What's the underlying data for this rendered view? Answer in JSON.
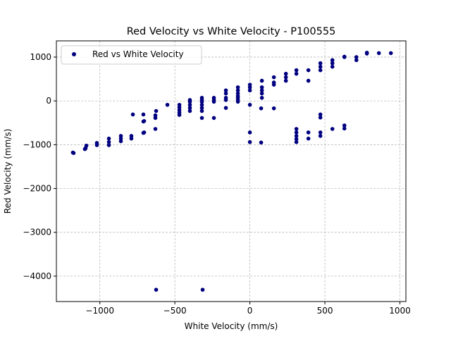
{
  "chart_data": {
    "type": "scatter",
    "title": "Red Velocity vs White Velocity - P100555",
    "xlabel": "White Velocity (mm/s)",
    "ylabel": "Red Velocity (mm/s)",
    "xlim": [
      -1290,
      1040
    ],
    "ylim": [
      -4580,
      1370
    ],
    "xticks": [
      -1000,
      -500,
      0,
      500,
      1000
    ],
    "yticks": [
      1000,
      0,
      -1000,
      -2000,
      -3000,
      -4000
    ],
    "xtick_labels": [
      "−1000",
      "−500",
      "0",
      "500",
      "1000"
    ],
    "ytick_labels": [
      "1000",
      "0",
      "−1000",
      "−2000",
      "−3000",
      "−4000"
    ],
    "grid": true,
    "legend_position": "top-left",
    "series": [
      {
        "name": "Red vs White Velocity",
        "color": "#000080",
        "points": [
          [
            -1180,
            -1180
          ],
          [
            -1175,
            -1190
          ],
          [
            -1100,
            -1100
          ],
          [
            -1095,
            -1080
          ],
          [
            -1090,
            -1020
          ],
          [
            -1020,
            -1010
          ],
          [
            -1020,
            -960
          ],
          [
            -940,
            -1010
          ],
          [
            -940,
            -940
          ],
          [
            -940,
            -860
          ],
          [
            -860,
            -920
          ],
          [
            -860,
            -860
          ],
          [
            -860,
            -800
          ],
          [
            -790,
            -860
          ],
          [
            -790,
            -800
          ],
          [
            -780,
            -310
          ],
          [
            -710,
            -730
          ],
          [
            -705,
            -720
          ],
          [
            -710,
            -470
          ],
          [
            -705,
            -460
          ],
          [
            -710,
            -310
          ],
          [
            -630,
            -640
          ],
          [
            -630,
            -390
          ],
          [
            -630,
            -330
          ],
          [
            -625,
            -230
          ],
          [
            -625,
            -4310
          ],
          [
            -550,
            -90
          ],
          [
            -470,
            -320
          ],
          [
            -470,
            -270
          ],
          [
            -470,
            -210
          ],
          [
            -470,
            -150
          ],
          [
            -470,
            -90
          ],
          [
            -400,
            -230
          ],
          [
            -400,
            -160
          ],
          [
            -400,
            -90
          ],
          [
            -400,
            -20
          ],
          [
            -400,
            20
          ],
          [
            -320,
            -390
          ],
          [
            -320,
            -230
          ],
          [
            -320,
            -160
          ],
          [
            -320,
            -90
          ],
          [
            -320,
            -20
          ],
          [
            -320,
            20
          ],
          [
            -320,
            70
          ],
          [
            -315,
            -4310
          ],
          [
            -240,
            -390
          ],
          [
            -240,
            -20
          ],
          [
            -240,
            20
          ],
          [
            -240,
            70
          ],
          [
            -160,
            -160
          ],
          [
            -160,
            20
          ],
          [
            -160,
            70
          ],
          [
            -160,
            170
          ],
          [
            -160,
            240
          ],
          [
            -80,
            -20
          ],
          [
            -80,
            20
          ],
          [
            -80,
            70
          ],
          [
            -80,
            110
          ],
          [
            -80,
            170
          ],
          [
            -80,
            240
          ],
          [
            -80,
            310
          ],
          [
            0,
            -90
          ],
          [
            0,
            -720
          ],
          [
            0,
            -940
          ],
          [
            0,
            240
          ],
          [
            0,
            310
          ],
          [
            0,
            370
          ],
          [
            75,
            -170
          ],
          [
            75,
            -950
          ],
          [
            80,
            70
          ],
          [
            80,
            170
          ],
          [
            80,
            240
          ],
          [
            80,
            310
          ],
          [
            80,
            460
          ],
          [
            160,
            -170
          ],
          [
            160,
            370
          ],
          [
            160,
            420
          ],
          [
            160,
            540
          ],
          [
            240,
            460
          ],
          [
            240,
            540
          ],
          [
            240,
            620
          ],
          [
            310,
            -940
          ],
          [
            310,
            -870
          ],
          [
            310,
            -800
          ],
          [
            310,
            -720
          ],
          [
            310,
            -640
          ],
          [
            310,
            620
          ],
          [
            310,
            700
          ],
          [
            390,
            -860
          ],
          [
            390,
            -720
          ],
          [
            390,
            460
          ],
          [
            390,
            700
          ],
          [
            470,
            -800
          ],
          [
            470,
            -720
          ],
          [
            470,
            -380
          ],
          [
            470,
            -310
          ],
          [
            470,
            700
          ],
          [
            470,
            780
          ],
          [
            470,
            860
          ],
          [
            550,
            -640
          ],
          [
            550,
            780
          ],
          [
            550,
            860
          ],
          [
            550,
            930
          ],
          [
            630,
            -630
          ],
          [
            630,
            -560
          ],
          [
            630,
            1000
          ],
          [
            630,
            1010
          ],
          [
            710,
            930
          ],
          [
            710,
            1000
          ],
          [
            780,
            1080
          ],
          [
            780,
            1100
          ],
          [
            860,
            1090
          ],
          [
            940,
            1090
          ]
        ]
      }
    ]
  }
}
